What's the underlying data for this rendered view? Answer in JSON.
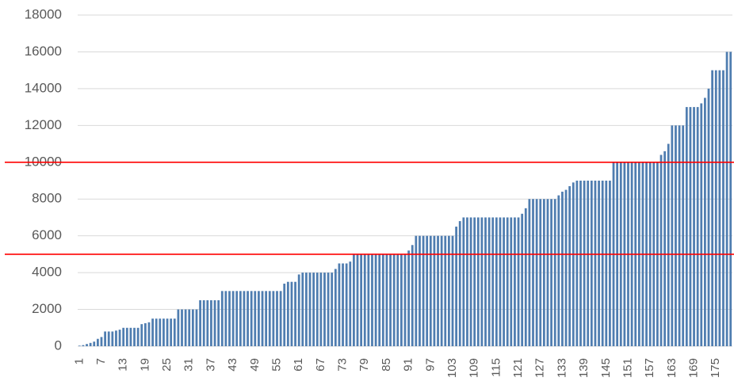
{
  "chart_data": {
    "type": "bar",
    "categories": [
      1,
      null,
      null,
      null,
      null,
      null,
      7,
      null,
      null,
      null,
      null,
      null,
      13,
      null,
      null,
      null,
      null,
      null,
      19,
      null,
      null,
      null,
      null,
      null,
      25,
      null,
      null,
      null,
      null,
      null,
      31,
      null,
      null,
      null,
      null,
      null,
      37,
      null,
      null,
      null,
      null,
      null,
      43,
      null,
      null,
      null,
      null,
      null,
      49,
      null,
      null,
      null,
      null,
      null,
      55,
      null,
      null,
      null,
      null,
      null,
      61,
      null,
      null,
      null,
      null,
      null,
      67,
      null,
      null,
      null,
      null,
      null,
      73,
      null,
      null,
      null,
      null,
      null,
      79,
      null,
      null,
      null,
      null,
      null,
      85,
      null,
      null,
      null,
      null,
      null,
      91,
      null,
      null,
      null,
      null,
      null,
      97,
      null,
      null,
      null,
      null,
      null,
      103,
      null,
      null,
      null,
      null,
      null,
      109,
      null,
      null,
      null,
      null,
      null,
      115,
      null,
      null,
      null,
      null,
      null,
      121,
      null,
      null,
      null,
      null,
      null,
      127,
      null,
      null,
      null,
      null,
      null,
      133,
      null,
      null,
      null,
      null,
      null,
      139,
      null,
      null,
      null,
      null,
      null,
      145,
      null,
      null,
      null,
      null,
      null,
      151,
      null,
      null,
      null,
      null,
      null,
      157,
      null,
      null,
      null,
      null,
      null,
      163,
      null,
      null,
      null,
      null,
      null,
      169,
      null,
      null,
      null,
      null,
      null,
      175,
      null,
      null,
      null,
      null
    ],
    "values": [
      30,
      60,
      120,
      180,
      250,
      400,
      500,
      800,
      800,
      800,
      850,
      900,
      1000,
      1000,
      1000,
      1000,
      1000,
      1200,
      1250,
      1300,
      1500,
      1500,
      1500,
      1500,
      1500,
      1500,
      1500,
      2000,
      2000,
      2000,
      2000,
      2000,
      2000,
      2500,
      2500,
      2500,
      2500,
      2500,
      2500,
      3000,
      3000,
      3000,
      3000,
      3000,
      3000,
      3000,
      3000,
      3000,
      3000,
      3000,
      3000,
      3000,
      3000,
      3000,
      3000,
      3000,
      3400,
      3500,
      3500,
      3500,
      3900,
      4000,
      4000,
      4000,
      4000,
      4000,
      4000,
      4000,
      4000,
      4000,
      4200,
      4500,
      4500,
      4500,
      4600,
      5000,
      5000,
      5000,
      5000,
      5000,
      5000,
      5000,
      5000,
      5000,
      5000,
      5000,
      5000,
      5000,
      5000,
      5000,
      5200,
      5500,
      6000,
      6000,
      6000,
      6000,
      6000,
      6000,
      6000,
      6000,
      6000,
      6000,
      6000,
      6500,
      6800,
      7000,
      7000,
      7000,
      7000,
      7000,
      7000,
      7000,
      7000,
      7000,
      7000,
      7000,
      7000,
      7000,
      7000,
      7000,
      7000,
      7200,
      7500,
      8000,
      8000,
      8000,
      8000,
      8000,
      8000,
      8000,
      8000,
      8200,
      8400,
      8500,
      8700,
      8900,
      9000,
      9000,
      9000,
      9000,
      9000,
      9000,
      9000,
      9000,
      9000,
      9000,
      10000,
      10000,
      10000,
      10000,
      10000,
      10000,
      10000,
      10000,
      10000,
      10000,
      10000,
      10000,
      10000,
      10400,
      10600,
      11000,
      12000,
      12000,
      12000,
      12000,
      13000,
      13000,
      13000,
      13000,
      13200,
      13500,
      14000,
      15000,
      15000,
      15000,
      15000,
      16000,
      16000
    ],
    "color": "#4f7db0",
    "ylim": [
      0,
      18000
    ],
    "yticks": [
      0,
      2000,
      4000,
      6000,
      8000,
      10000,
      12000,
      14000,
      16000,
      18000
    ],
    "grid": true,
    "reference_lines": [
      10000,
      5000
    ],
    "reference_color": "#ff0000"
  }
}
